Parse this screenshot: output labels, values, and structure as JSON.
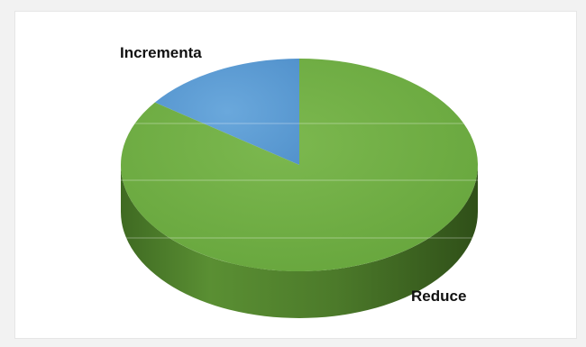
{
  "chart_data": {
    "type": "pie",
    "style": "3d",
    "title": "",
    "slices": [
      {
        "label": "Incrementa",
        "value": 15,
        "color": "#5b9bd5"
      },
      {
        "label": "Reduce",
        "value": 85,
        "color": "#70ad47"
      }
    ]
  }
}
